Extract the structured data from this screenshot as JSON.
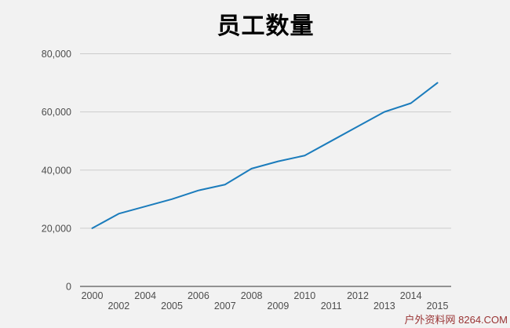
{
  "title": "员工数量",
  "watermark": "户外资料网 8264.COM",
  "colors": {
    "background": "#f2f2f2",
    "line": "#1b7cbc",
    "grid": "#cccccc",
    "axis": "#333333",
    "tick_label": "#4d4d4d",
    "title": "#000000",
    "watermark": "#993333"
  },
  "chart_data": {
    "type": "line",
    "title": "员工数量",
    "categories": [
      "2000",
      "2002",
      "2004",
      "2005",
      "2006",
      "2007",
      "2008",
      "2009",
      "2010",
      "2011",
      "2012",
      "2013",
      "2014",
      "2015"
    ],
    "values": [
      20000,
      25000,
      27500,
      30000,
      33000,
      35000,
      40500,
      43000,
      45000,
      50000,
      55000,
      60000,
      63000,
      70000
    ],
    "series_name": "员工数量",
    "xlabel": "",
    "ylabel": "",
    "ylim": [
      0,
      80000
    ],
    "yticks": [
      0,
      20000,
      40000,
      60000,
      80000
    ],
    "ytick_labels": [
      "0",
      "20,000",
      "40,000",
      "60,000",
      "80,000"
    ],
    "x_label_stagger": true,
    "grid": true,
    "legend": false,
    "line_color": "#1b7cbc"
  }
}
